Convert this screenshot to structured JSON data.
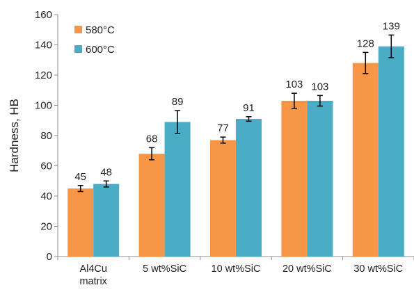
{
  "chart_data": {
    "type": "bar",
    "categories": [
      [
        "Al4Cu",
        "matrix"
      ],
      [
        "5 wt%SiC"
      ],
      [
        "10 wt%SiC"
      ],
      [
        "20 wt%SiC"
      ],
      [
        "30 wt%SiC"
      ]
    ],
    "series": [
      {
        "name": "580°C",
        "color": "#F79646",
        "values": [
          45,
          68,
          77,
          103,
          128
        ],
        "errors": [
          2,
          4,
          2,
          5,
          7
        ]
      },
      {
        "name": "600°C",
        "color": "#4BACC6",
        "values": [
          48,
          89,
          91,
          103,
          139
        ],
        "errors": [
          2,
          7.5,
          1.5,
          3.5,
          7.5
        ]
      }
    ],
    "ylabel": "Hardness, HB",
    "xlabel": "",
    "title": "",
    "ylim": [
      0,
      160
    ],
    "yticks": [
      0,
      20,
      40,
      60,
      80,
      100,
      120,
      140,
      160
    ],
    "grid": false,
    "legend_position": "top-left"
  }
}
